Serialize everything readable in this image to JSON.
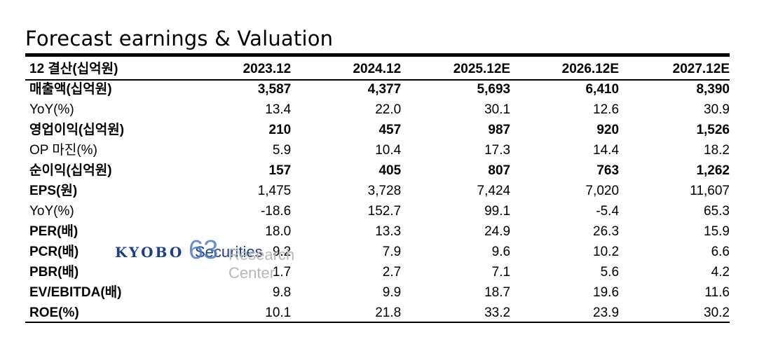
{
  "title": "Forecast earnings & Valuation",
  "header": [
    "12 결산(십억원)",
    "2023.12",
    "2024.12",
    "2025.12E",
    "2026.12E",
    "2027.12E"
  ],
  "rows": [
    {
      "label": "매출액(십억원)",
      "bold": true,
      "values": [
        "3,587",
        "4,377",
        "5,693",
        "6,410",
        "8,390"
      ]
    },
    {
      "label": "YoY(%)",
      "bold": false,
      "values": [
        "13.4",
        "22.0",
        "30.1",
        "12.6",
        "30.9"
      ]
    },
    {
      "label": "영업이익(십억원)",
      "bold": true,
      "values": [
        "210",
        "457",
        "987",
        "920",
        "1,526"
      ]
    },
    {
      "label": "OP 마진(%)",
      "bold": false,
      "values": [
        "5.9",
        "10.4",
        "17.3",
        "14.4",
        "18.2"
      ]
    },
    {
      "label": "순이익(십억원)",
      "bold": true,
      "values": [
        "157",
        "405",
        "807",
        "763",
        "1,262"
      ]
    },
    {
      "label": "EPS(원)",
      "bold": false,
      "label_bold": true,
      "values": [
        "1,475",
        "3,728",
        "7,424",
        "7,020",
        "11,607"
      ]
    },
    {
      "label": "YoY(%)",
      "bold": false,
      "values": [
        "-18.6",
        "152.7",
        "99.1",
        "-5.4",
        "65.3"
      ]
    },
    {
      "label": "PER(배)",
      "bold": false,
      "label_bold": true,
      "values": [
        "18.0",
        "13.3",
        "24.9",
        "26.3",
        "15.9"
      ]
    },
    {
      "label": "PCR(배)",
      "bold": false,
      "label_bold": true,
      "values": [
        "9.2",
        "7.9",
        "9.6",
        "10.2",
        "6.6"
      ]
    },
    {
      "label": "PBR(배)",
      "bold": false,
      "label_bold": true,
      "values": [
        "1.7",
        "2.7",
        "7.1",
        "5.6",
        "4.2"
      ]
    },
    {
      "label": "EV/EBITDA(배)",
      "bold": false,
      "label_bold": true,
      "values": [
        "9.8",
        "9.9",
        "18.7",
        "19.6",
        "11.6"
      ]
    },
    {
      "label": "ROE(%)",
      "bold": false,
      "label_bold": true,
      "values": [
        "10.1",
        "21.8",
        "33.2",
        "23.9",
        "30.2"
      ]
    }
  ],
  "watermark": {
    "logo": "KYOBO",
    "securities": "Securities",
    "number": "63",
    "center": "Research Center"
  }
}
